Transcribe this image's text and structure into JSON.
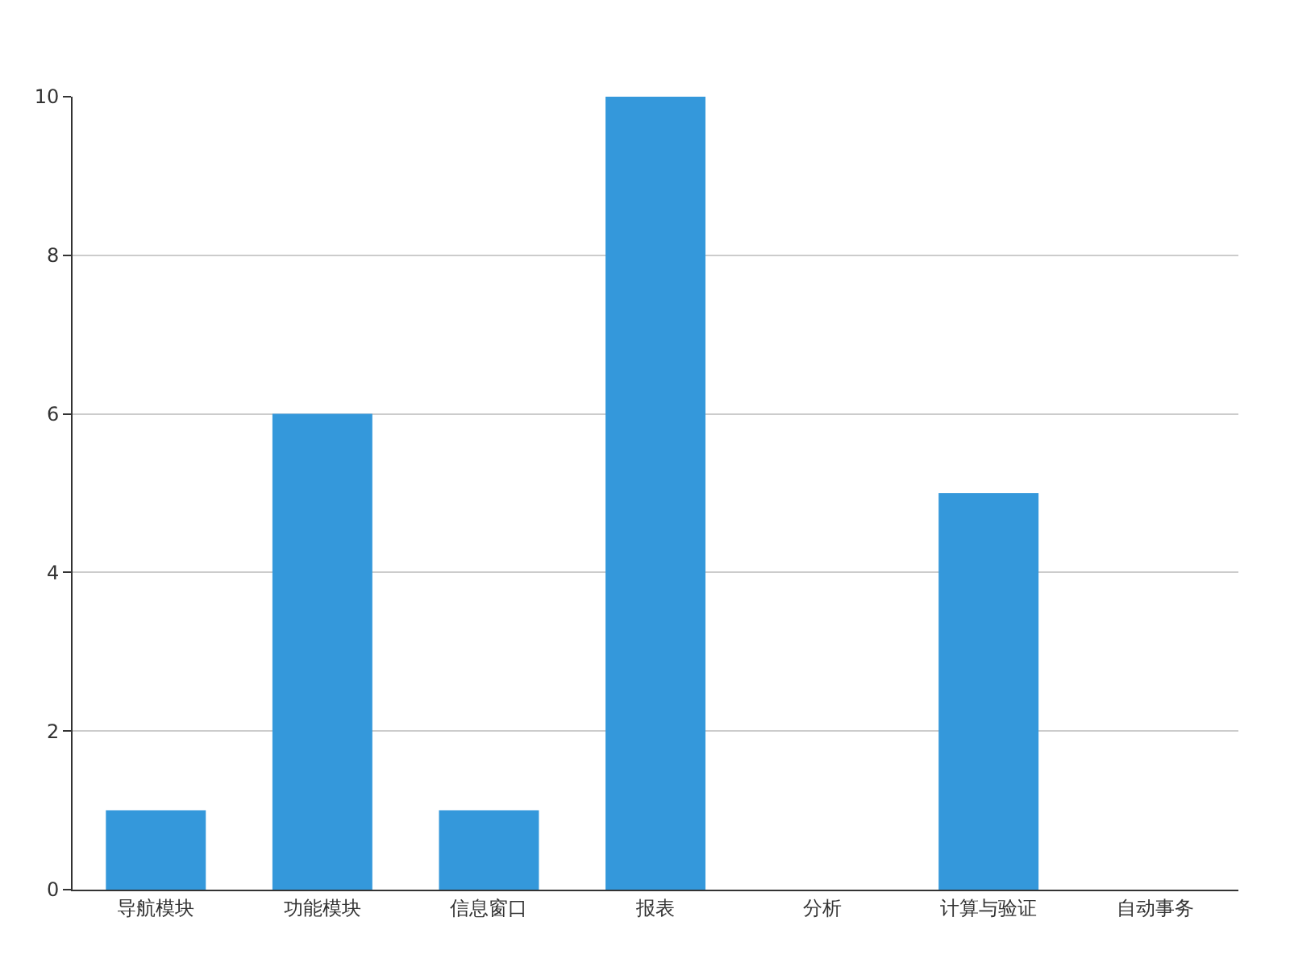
{
  "chart_data": {
    "type": "bar",
    "categories": [
      "导航模块",
      "功能模块",
      "信息窗口",
      "报表",
      "分析",
      "计算与验证",
      "自动事务"
    ],
    "values": [
      1,
      6,
      1,
      10,
      0,
      5,
      0
    ],
    "color": "#3498db",
    "ylim": [
      0,
      10
    ],
    "yticks": [
      0,
      2,
      4,
      6,
      8,
      10
    ],
    "grid": "y"
  }
}
